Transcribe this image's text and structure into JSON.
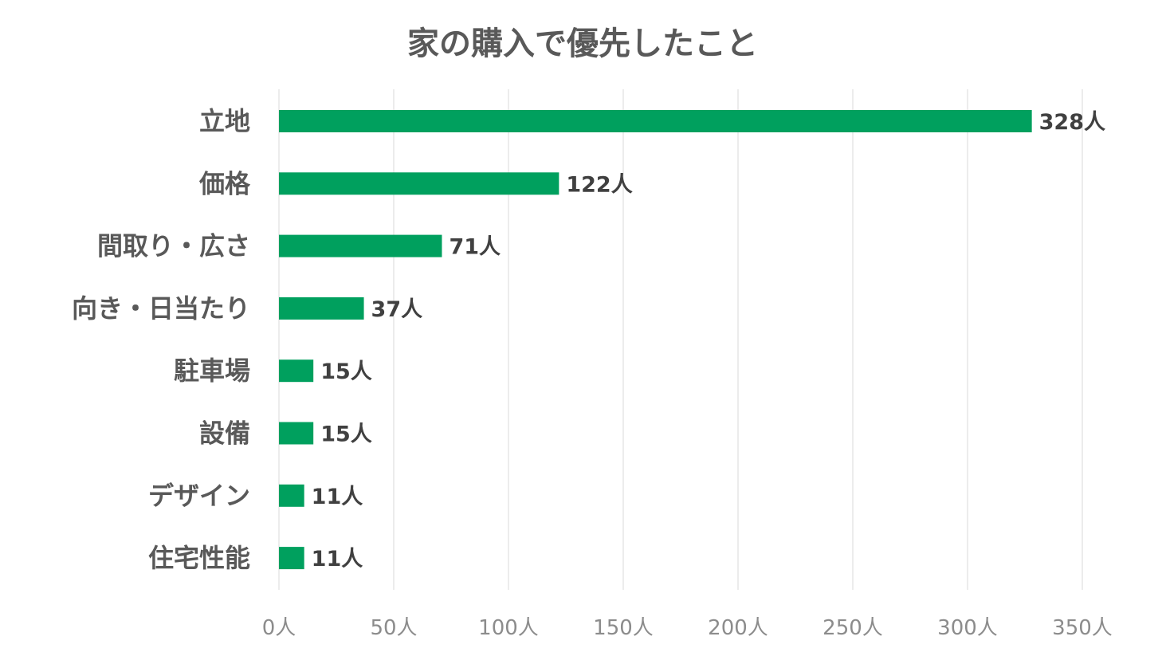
{
  "chart_data": {
    "type": "bar",
    "orientation": "horizontal",
    "title": "家の購入で優先したこと",
    "categories": [
      "立地",
      "価格",
      "間取り・広さ",
      "向き・日当たり",
      "駐車場",
      "設備",
      "デザイン",
      "住宅性能"
    ],
    "values": [
      328,
      122,
      71,
      37,
      15,
      15,
      11,
      11
    ],
    "value_labels": [
      "328人",
      "122人",
      "71人",
      "37人",
      "15人",
      "15人",
      "11人",
      "11人"
    ],
    "xlim": [
      0,
      350
    ],
    "x_ticks": [
      0,
      50,
      100,
      150,
      200,
      250,
      300,
      350
    ],
    "x_tick_labels": [
      "0人",
      "50人",
      "100人",
      "150人",
      "200人",
      "250人",
      "300人",
      "350人"
    ],
    "xlabel": "",
    "ylabel": "",
    "grid": true,
    "legend": "none",
    "colors": {
      "bar": "#00a05e",
      "grid": "#d9d9d9",
      "title": "#595959",
      "category_text": "#595959",
      "value_text": "#404040",
      "tick_text": "#8c8c8c"
    }
  }
}
